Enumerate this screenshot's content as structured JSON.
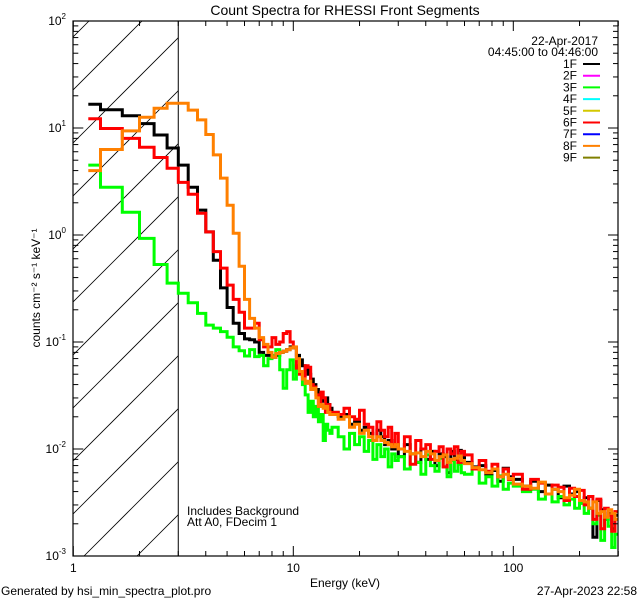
{
  "chart_data": {
    "type": "line",
    "title": "Count Spectra for RHESSI Front Segments",
    "xlabel": "Energy (keV)",
    "ylabel": "counts cm⁻² s⁻¹ keV⁻¹",
    "xscale": "log",
    "yscale": "log",
    "xlim": [
      1,
      300
    ],
    "ylim": [
      0.001,
      100
    ],
    "x_ticks": [
      {
        "value": 1,
        "label": "1"
      },
      {
        "value": 10,
        "label": "10"
      },
      {
        "value": 100,
        "label": "100"
      }
    ],
    "y_ticks": [
      {
        "value": 100,
        "base": "10",
        "exp": "2"
      },
      {
        "value": 10,
        "base": "10",
        "exp": "1"
      },
      {
        "value": 1,
        "base": "10",
        "exp": "0"
      },
      {
        "value": 0.1,
        "base": "10",
        "exp": "-1"
      },
      {
        "value": 0.01,
        "base": "10",
        "exp": "-2"
      },
      {
        "value": 0.001,
        "base": "10",
        "exp": "-3"
      }
    ],
    "hatched_region_keV": [
      1,
      3
    ],
    "date": "22-Apr-2017",
    "time_range": "04:45:00 to 04:46:00",
    "annotations": [
      "Includes Background",
      "Att A0, FDecim 1"
    ],
    "legend_position": "top-right",
    "legend": [
      {
        "label": "1F",
        "color": "#000000"
      },
      {
        "label": "2F",
        "color": "#ff00ff"
      },
      {
        "label": "3F",
        "color": "#00ff00"
      },
      {
        "label": "4F",
        "color": "#00ffff"
      },
      {
        "label": "5F",
        "color": "#d4c800"
      },
      {
        "label": "6F",
        "color": "#ff0000"
      },
      {
        "label": "7F",
        "color": "#0000ff"
      },
      {
        "label": "8F",
        "color": "#ff8000"
      },
      {
        "label": "9F",
        "color": "#808000"
      }
    ],
    "energy_edges_keV": [
      1.17,
      1.33,
      1.67,
      2,
      2.33,
      2.67,
      3,
      3.33,
      3.67,
      4,
      4.33,
      4.67,
      5,
      5.33,
      5.67,
      6,
      6.33,
      6.67,
      7,
      7.33,
      7.67,
      8,
      8.33,
      8.67,
      9,
      9.33,
      9.67,
      10,
      10.33,
      10.67,
      11,
      11.33,
      11.67,
      12,
      12.33,
      12.67,
      13,
      13.33,
      13.67,
      14,
      14.33,
      14.67,
      15,
      16,
      17,
      18,
      19,
      20,
      21,
      22,
      23,
      24,
      25,
      26,
      27,
      28,
      29,
      30,
      32,
      34,
      36,
      38,
      40,
      42,
      44,
      46,
      48,
      50,
      52,
      54,
      56,
      58,
      60,
      65,
      70,
      75,
      80,
      85,
      90,
      95,
      100,
      110,
      120,
      130,
      140,
      150,
      160,
      170,
      180,
      190,
      200,
      210,
      220,
      230,
      240,
      250,
      260,
      270,
      280,
      290,
      300
    ],
    "series": [
      {
        "name": "1F",
        "color": "#000000",
        "values": [
          16.7,
          14.8,
          13.0,
          11.0,
          8.6,
          6.5,
          4.5,
          2.8,
          1.71,
          1.07,
          0.58,
          0.32,
          0.21,
          0.15,
          0.12,
          0.107,
          0.105,
          0.1,
          0.08,
          0.075,
          0.075,
          0.072,
          0.075,
          0.08,
          0.082,
          0.085,
          0.09,
          0.088,
          0.075,
          0.068,
          0.06,
          0.055,
          0.05,
          0.045,
          0.04,
          0.036,
          0.033,
          0.03,
          0.028,
          0.03,
          0.026,
          0.024,
          0.022,
          0.02,
          0.021,
          0.017,
          0.018,
          0.015,
          0.016,
          0.014,
          0.012,
          0.015,
          0.013,
          0.011,
          0.012,
          0.01,
          0.011,
          0.0085,
          0.011,
          0.009,
          0.0075,
          0.01,
          0.008,
          0.0095,
          0.007,
          0.009,
          0.0085,
          0.006,
          0.0095,
          0.008,
          0.0097,
          0.0085,
          0.0075,
          0.0068,
          0.007,
          0.0058,
          0.0063,
          0.005,
          0.0066,
          0.0055,
          0.0052,
          0.0045,
          0.005,
          0.004,
          0.0046,
          0.0042,
          0.0035,
          0.0045,
          0.0038,
          0.004,
          0.0032,
          0.0035,
          0.0028,
          0.0015,
          0.0033,
          0.0027,
          0.0022,
          0.0025,
          0.0018,
          0.0024
        ]
      },
      {
        "name": "3F",
        "color": "#00ff00",
        "values": [
          4.5,
          2.8,
          1.63,
          0.93,
          0.53,
          0.355,
          0.285,
          0.233,
          0.185,
          0.144,
          0.135,
          0.125,
          0.111,
          0.09,
          0.083,
          0.074,
          0.085,
          0.073,
          0.075,
          0.06,
          0.07,
          0.075,
          0.085,
          0.055,
          0.037,
          0.055,
          0.068,
          0.045,
          0.06,
          0.052,
          0.04,
          0.032,
          0.022,
          0.028,
          0.02,
          0.025,
          0.018,
          0.021,
          0.012,
          0.017,
          0.015,
          0.014,
          0.016,
          0.013,
          0.01,
          0.014,
          0.011,
          0.013,
          0.0095,
          0.012,
          0.008,
          0.011,
          0.0085,
          0.01,
          0.0068,
          0.009,
          0.0078,
          0.0085,
          0.0065,
          0.009,
          0.0075,
          0.0058,
          0.0088,
          0.007,
          0.0062,
          0.0082,
          0.0068,
          0.0055,
          0.0078,
          0.0062,
          0.0072,
          0.006,
          0.0058,
          0.0065,
          0.0048,
          0.0055,
          0.0045,
          0.0056,
          0.0042,
          0.0048,
          0.0045,
          0.004,
          0.0042,
          0.0034,
          0.0038,
          0.0032,
          0.0036,
          0.003,
          0.0034,
          0.0028,
          0.0031,
          0.0025,
          0.0028,
          0.002,
          0.0024,
          0.0014,
          0.0022,
          0.0019,
          0.0012,
          0.0016
        ]
      },
      {
        "name": "6F",
        "color": "#ff0000",
        "values": [
          12.2,
          9.9,
          8.0,
          6.6,
          5.3,
          4.2,
          3.1,
          2.4,
          1.6,
          1.07,
          0.7,
          0.49,
          0.34,
          0.25,
          0.19,
          0.135,
          0.135,
          0.15,
          0.105,
          0.09,
          0.09,
          0.11,
          0.095,
          0.1,
          0.12,
          0.125,
          0.1,
          0.089,
          0.057,
          0.05,
          0.048,
          0.06,
          0.058,
          0.04,
          0.038,
          0.032,
          0.025,
          0.034,
          0.03,
          0.022,
          0.026,
          0.021,
          0.022,
          0.021,
          0.024,
          0.02,
          0.019,
          0.023,
          0.017,
          0.016,
          0.012,
          0.018,
          0.015,
          0.013,
          0.016,
          0.011,
          0.014,
          0.01,
          0.013,
          0.0072,
          0.012,
          0.01,
          0.011,
          0.008,
          0.0095,
          0.0105,
          0.0068,
          0.01,
          0.009,
          0.0105,
          0.0075,
          0.0095,
          0.0088,
          0.0065,
          0.0078,
          0.0062,
          0.0072,
          0.0055,
          0.0065,
          0.0052,
          0.0058,
          0.0042,
          0.0052,
          0.0048,
          0.0038,
          0.0046,
          0.0044,
          0.0033,
          0.0043,
          0.0036,
          0.0041,
          0.003,
          0.0036,
          0.0022,
          0.0034,
          0.0018,
          0.0028,
          0.0024,
          0.0017,
          0.0026
        ]
      },
      {
        "name": "8F",
        "color": "#ff8000",
        "values": [
          4.0,
          6.3,
          9.4,
          12.6,
          15.3,
          17.0,
          17.0,
          14.7,
          11.9,
          8.7,
          5.6,
          3.4,
          1.9,
          1.04,
          0.51,
          0.25,
          0.166,
          0.135,
          0.11,
          0.095,
          0.08,
          0.072,
          0.078,
          0.08,
          0.082,
          0.085,
          0.088,
          0.09,
          0.07,
          0.053,
          0.045,
          0.041,
          0.043,
          0.036,
          0.037,
          0.03,
          0.025,
          0.026,
          0.024,
          0.025,
          0.022,
          0.021,
          0.021,
          0.019,
          0.02,
          0.016,
          0.017,
          0.014,
          0.015,
          0.013,
          0.012,
          0.013,
          0.012,
          0.0115,
          0.011,
          0.0105,
          0.011,
          0.01,
          0.0095,
          0.009,
          0.0092,
          0.0085,
          0.0095,
          0.009,
          0.0078,
          0.0085,
          0.0088,
          0.0075,
          0.008,
          0.0082,
          0.0086,
          0.0078,
          0.0073,
          0.0067,
          0.0064,
          0.006,
          0.0065,
          0.0055,
          0.0058,
          0.0053,
          0.0047,
          0.0045,
          0.0043,
          0.0049,
          0.0038,
          0.0042,
          0.004,
          0.0035,
          0.0037,
          0.0042,
          0.0033,
          0.0032,
          0.0028,
          0.0032,
          0.0025,
          0.0026,
          0.0023,
          0.0027,
          0.0025,
          0.0022
        ]
      }
    ]
  },
  "footer": {
    "generated_by": "Generated by hsi_min_spectra_plot.pro",
    "timestamp": "27-Apr-2023 22:58"
  }
}
